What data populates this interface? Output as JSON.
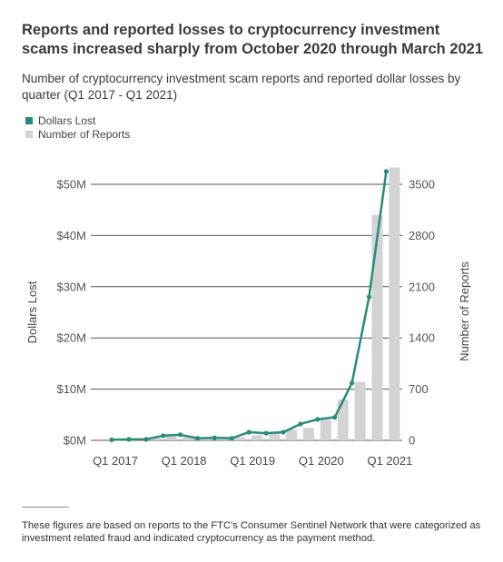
{
  "title": "Reports and reported losses to cryptocurrency investment scams increased sharply from October 2020 through March 2021",
  "subtitle": "Number of cryptocurrency investment scam reports and reported dollar losses by quarter (Q1 2017 - Q1 2021)",
  "footnote": "These figures are based on reports to the FTC's Consumer Sentinel Network that were categorized as investment related fraud and indicated cryptocurrency as the payment method.",
  "colors": {
    "line": "#2a8a7e",
    "bars": "#d3d3d3",
    "grid": "#555555"
  },
  "chart_data": {
    "type": "bar+line",
    "categories": [
      "Q1 2017",
      "Q2 2017",
      "Q3 2017",
      "Q4 2017",
      "Q1 2018",
      "Q2 2018",
      "Q3 2018",
      "Q4 2018",
      "Q1 2019",
      "Q2 2019",
      "Q3 2019",
      "Q4 2019",
      "Q1 2020",
      "Q2 2020",
      "Q3 2020",
      "Q4 2020",
      "Q1 2021"
    ],
    "x_tick_labels": [
      "Q1 2017",
      "Q1 2018",
      "Q1 2019",
      "Q1 2020",
      "Q1 2021"
    ],
    "series": [
      {
        "name": "Dollars Lost",
        "type": "line",
        "axis": "left",
        "unit": "$M",
        "values": [
          0.1,
          0.2,
          0.2,
          0.9,
          1.1,
          0.4,
          0.5,
          0.4,
          1.6,
          1.4,
          1.6,
          3.2,
          4.1,
          4.5,
          11.2,
          28.0,
          52.5
        ]
      },
      {
        "name": "Number of Reports",
        "type": "bar",
        "axis": "right",
        "values": [
          5,
          15,
          35,
          80,
          60,
          40,
          50,
          40,
          70,
          100,
          150,
          170,
          280,
          560,
          800,
          3080,
          3730
        ]
      }
    ],
    "y_left": {
      "label": "Dollars Lost",
      "ticks": [
        "$0M",
        "$10M",
        "$20M",
        "$30M",
        "$40M",
        "$50M"
      ],
      "min": 0,
      "max": 50
    },
    "y_right": {
      "label": "Number of Reports",
      "ticks": [
        "0",
        "700",
        "1400",
        "2100",
        "2800",
        "3500"
      ],
      "min": 0,
      "max": 3500
    },
    "grid": true,
    "legend": "top-left"
  }
}
